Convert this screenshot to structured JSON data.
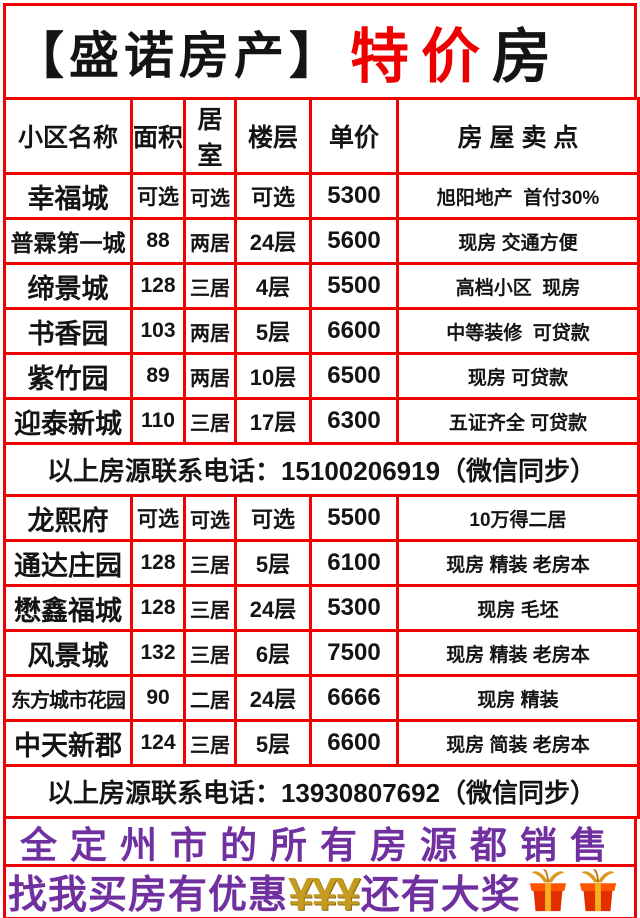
{
  "header": {
    "brand": "【盛诺房产】",
    "highlight": "特价",
    "suffix": "房"
  },
  "table": {
    "columns": [
      "小区名称",
      "面积",
      "居室",
      "楼层",
      "单价",
      "房 屋 卖 点"
    ],
    "group1": {
      "rows": [
        {
          "name": "幸福城",
          "area": "可选",
          "rooms": "可选",
          "floor": "可选",
          "price": "5300",
          "selling": "旭阳地产  首付30%"
        },
        {
          "name": "普霖第一城",
          "area": "88",
          "rooms": "两居",
          "floor": "24层",
          "price": "5600",
          "selling": "现房 交通方便"
        },
        {
          "name": "缔景城",
          "area": "128",
          "rooms": "三居",
          "floor": "4层",
          "price": "5500",
          "selling": "高档小区  现房"
        },
        {
          "name": "书香园",
          "area": "103",
          "rooms": "两居",
          "floor": "5层",
          "price": "6600",
          "selling": "中等装修  可贷款"
        },
        {
          "name": "紫竹园",
          "area": "89",
          "rooms": "两居",
          "floor": "10层",
          "price": "6500",
          "selling": "现房 可贷款"
        },
        {
          "name": "迎泰新城",
          "area": "110",
          "rooms": "三居",
          "floor": "17层",
          "price": "6300",
          "selling": "五证齐全 可贷款"
        }
      ],
      "contact": "以上房源联系电话：15100206919（微信同步）"
    },
    "group2": {
      "rows": [
        {
          "name": "龙熙府",
          "area": "可选",
          "rooms": "可选",
          "floor": "可选",
          "price": "5500",
          "selling": "10万得二居"
        },
        {
          "name": "通达庄园",
          "area": "128",
          "rooms": "三居",
          "floor": "5层",
          "price": "6100",
          "selling": "现房 精装 老房本"
        },
        {
          "name": "懋鑫福城",
          "area": "128",
          "rooms": "三居",
          "floor": "24层",
          "price": "5300",
          "selling": "现房 毛坯"
        },
        {
          "name": "风景城",
          "area": "132",
          "rooms": "三居",
          "floor": "6层",
          "price": "7500",
          "selling": "现房 精装 老房本"
        },
        {
          "name": "东方城市花园",
          "area": "90",
          "rooms": "二居",
          "floor": "24层",
          "price": "6666",
          "selling": "现房 精装"
        },
        {
          "name": "中天新郡",
          "area": "124",
          "rooms": "三居",
          "floor": "5层",
          "price": "6600",
          "selling": "现房 简装 老房本"
        }
      ],
      "contact": "以上房源联系电话：13930807692（微信同步）"
    }
  },
  "footer": {
    "line1": "全定州市的所有房源都销售",
    "line2_prefix": "找我买房有优惠",
    "line2_yen": "¥¥¥",
    "line2_suffix": "还有大奖",
    "gift_icons": [
      "gift-box",
      "gift-box"
    ]
  },
  "colors": {
    "border": "#f00000",
    "accent": "#ee0000",
    "purple": "#7030a0",
    "gold": "#c49a1f",
    "text": "#141414"
  }
}
